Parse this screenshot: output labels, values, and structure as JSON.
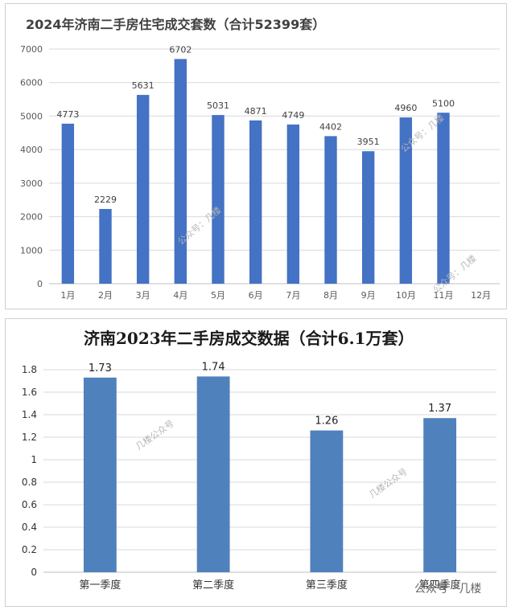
{
  "watermarks": {
    "chart1": [
      "公众号：几楼",
      "公众号：几楼",
      "公众号：几楼"
    ],
    "chart2": [
      "几楼公众号",
      "几楼公众号"
    ],
    "corner": "公众号 · 几楼"
  },
  "chart_data": [
    {
      "type": "bar",
      "title": "2024年济南二手房住宅成交套数（合计52399套）",
      "categories": [
        "1月",
        "2月",
        "3月",
        "4月",
        "5月",
        "6月",
        "7月",
        "8月",
        "9月",
        "10月",
        "11月",
        "12月"
      ],
      "values": [
        4773,
        2229,
        5631,
        6702,
        5031,
        4871,
        4749,
        4402,
        3951,
        4960,
        5100,
        null
      ],
      "data_labels": [
        "4773",
        "2229",
        "5631",
        "6702",
        "5031",
        "4871",
        "4749",
        "4402",
        "3951",
        "4960",
        "5100",
        ""
      ],
      "ylim": [
        0,
        7000
      ],
      "yticks": [
        "0",
        "1000",
        "2000",
        "3000",
        "4000",
        "5000",
        "6000",
        "7000"
      ],
      "grid": true,
      "bar_color": "#4472c4"
    },
    {
      "type": "bar",
      "title": "济南2023年二手房成交数据（合计6.1万套）",
      "categories": [
        "第一季度",
        "第二季度",
        "第三季度",
        "第四季度"
      ],
      "values": [
        1.73,
        1.74,
        1.26,
        1.37
      ],
      "data_labels": [
        "1.73",
        "1.74",
        "1.26",
        "1.37"
      ],
      "ylim": [
        0,
        1.8
      ],
      "yticks": [
        "0",
        "0.2",
        "0.4",
        "0.6",
        "0.8",
        "1",
        "1.2",
        "1.4",
        "1.6",
        "1.8"
      ],
      "grid": true,
      "bar_color": "#4f81bd"
    }
  ]
}
